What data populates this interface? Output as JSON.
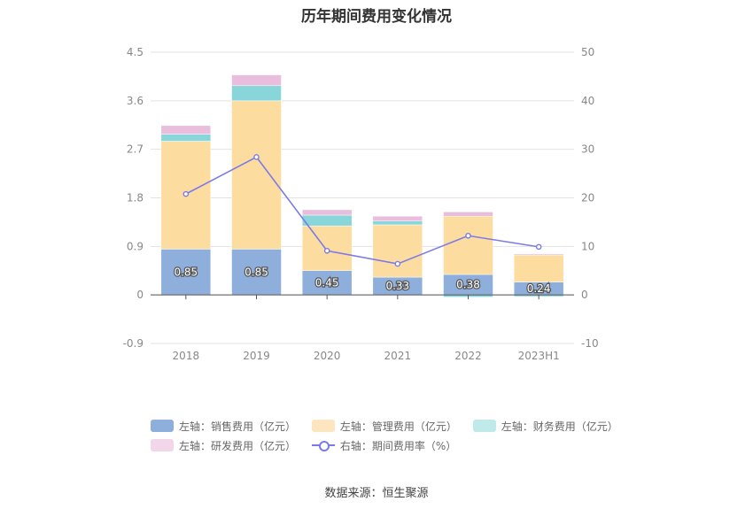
{
  "chart_data": {
    "type": "bar",
    "title": "历年期间费用变化情况",
    "categories": [
      "2018",
      "2019",
      "2020",
      "2021",
      "2022",
      "2023H1"
    ],
    "left_axis": {
      "ylim": [
        -0.9,
        4.5
      ],
      "ticks": [
        "4.5",
        "3.6",
        "2.7",
        "1.8",
        "0.9",
        "0",
        "-0.9"
      ]
    },
    "right_axis": {
      "ylim": [
        -10,
        50
      ],
      "ticks": [
        "50",
        "40",
        "30",
        "20",
        "10",
        "0",
        "-10"
      ]
    },
    "series": [
      {
        "name": "左轴：销售费用（亿元）",
        "type": "bar",
        "stack": true,
        "axis": "left",
        "color": "#8eaedc",
        "values": [
          0.85,
          0.85,
          0.45,
          0.33,
          0.38,
          0.24
        ],
        "labels": [
          "0.85",
          "0.85",
          "0.45",
          "0.33",
          "0.38",
          "0.24"
        ]
      },
      {
        "name": "左轴：管理费用（亿元）",
        "type": "bar",
        "stack": true,
        "axis": "left",
        "color": "#fddca0",
        "values": [
          2.0,
          2.75,
          0.83,
          0.97,
          1.08,
          0.5
        ]
      },
      {
        "name": "左轴：财务费用（亿元）",
        "type": "bar",
        "stack": true,
        "axis": "left",
        "color": "#88d6d9",
        "values": [
          0.13,
          0.28,
          0.2,
          0.07,
          -0.04,
          -0.03
        ]
      },
      {
        "name": "左轴：研发费用（亿元）",
        "type": "bar",
        "stack": true,
        "axis": "left",
        "color": "#e9bedc",
        "values": [
          0.16,
          0.2,
          0.1,
          0.09,
          0.08,
          0.02
        ]
      },
      {
        "name": "右轴：期间费用率（%）",
        "type": "line",
        "axis": "right",
        "color": "#7b7be8",
        "values": [
          20.8,
          28.4,
          9.1,
          6.4,
          12.2,
          9.9
        ]
      }
    ],
    "legend_position": "bottom",
    "grid": true
  },
  "legend_labels": {
    "sales": "左轴：销售费用（亿元）",
    "admin": "左轴：管理费用（亿元）",
    "finance": "左轴：财务费用（亿元）",
    "rd": "左轴：研发费用（亿元）",
    "rate": "右轴：期间费用率（%）"
  },
  "legend_colors": {
    "sales": "#8eaedc",
    "admin": "#fde5c0",
    "finance": "#c0e9ea",
    "rd": "#f2d6ea"
  },
  "source": "数据来源：恒生聚源"
}
